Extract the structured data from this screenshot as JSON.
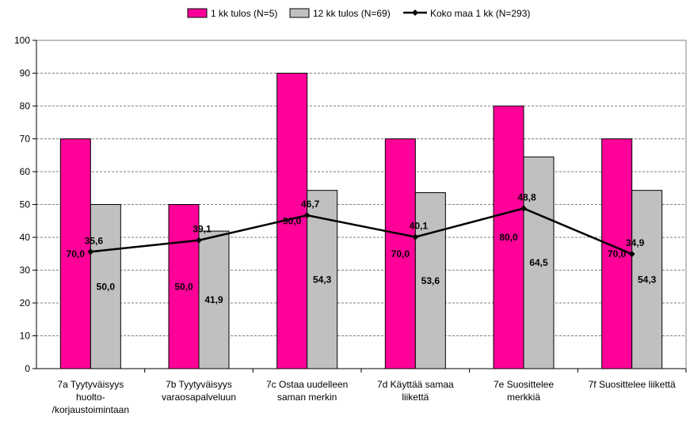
{
  "chart_data": {
    "type": "bar",
    "categories": [
      [
        "7a Tyytyväisyys",
        "huolto-",
        "/korjaustoimintaan"
      ],
      [
        "7b Tyytyväisyys",
        "varaosapalveluun"
      ],
      [
        "7c Ostaa uudelleen",
        "saman merkin"
      ],
      [
        "7d Käyttää samaa",
        "liikettä"
      ],
      [
        "7e Suosittelee",
        "merkkiä"
      ],
      [
        "7f Suosittelee liikettä"
      ]
    ],
    "series": [
      {
        "name": "1 kk tulos (N=5)",
        "kind": "bar",
        "color": "#ff0099",
        "values": [
          70,
          50,
          90,
          70,
          80,
          70
        ],
        "labels": [
          "70,0",
          "50,0",
          "90,0",
          "70,0",
          "80,0",
          "70,0"
        ]
      },
      {
        "name": "12 kk tulos (N=69)",
        "kind": "bar",
        "color": "#c0c0c0",
        "values": [
          50.0,
          41.9,
          54.3,
          53.6,
          64.5,
          54.3
        ],
        "labels": [
          "50,0",
          "41,9",
          "54,3",
          "53,6",
          "64,5",
          "54,3"
        ]
      },
      {
        "name": "Koko maa 1 kk (N=293)",
        "kind": "line",
        "color": "#000000",
        "values": [
          35.6,
          39.1,
          46.7,
          40.1,
          48.8,
          34.9
        ],
        "labels": [
          "35,6",
          "39,1",
          "46,7",
          "40,1",
          "48,8",
          "34,9"
        ]
      }
    ],
    "ylim": [
      0,
      100
    ],
    "yticks": [
      "0",
      "10",
      "20",
      "30",
      "40",
      "50",
      "60",
      "70",
      "80",
      "90",
      "100"
    ],
    "grid": true,
    "legend": "top"
  }
}
